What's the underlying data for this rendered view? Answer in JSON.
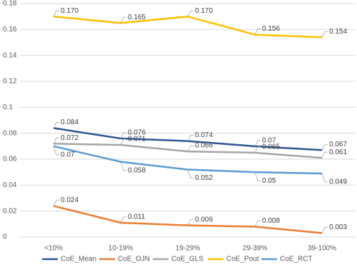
{
  "chart_data": {
    "type": "line",
    "categories": [
      "<10%",
      "10-19%",
      "19-29%",
      "29-39%",
      "39-100%"
    ],
    "series": [
      {
        "name": "CoE_Mean",
        "color": "#2f5597",
        "values": [
          0.084,
          0.076,
          0.074,
          0.07,
          0.067
        ]
      },
      {
        "name": "CoE_OJN",
        "color": "#ed7d31",
        "values": [
          0.024,
          0.011,
          0.009,
          0.008,
          0.003
        ]
      },
      {
        "name": "CoE_GLS",
        "color": "#a5a5a5",
        "values": [
          0.072,
          0.071,
          0.066,
          0.065,
          0.061
        ]
      },
      {
        "name": "CoE_Pout",
        "color": "#ffc000",
        "values": [
          0.17,
          0.165,
          0.17,
          0.156,
          0.154
        ],
        "value_labels": [
          "0.170",
          "0.165",
          "0.170",
          "0.156",
          "0.154"
        ]
      },
      {
        "name": "CoE_RCT",
        "color": "#5b9bd5",
        "values": [
          0.07,
          0.058,
          0.052,
          0.05,
          0.049
        ]
      }
    ],
    "ylim": [
      0,
      0.18
    ],
    "yticks": [
      0,
      0.02,
      0.04,
      0.06,
      0.08,
      0.1,
      0.12,
      0.14,
      0.16,
      0.18
    ],
    "grid": true,
    "legend": "bottom"
  }
}
